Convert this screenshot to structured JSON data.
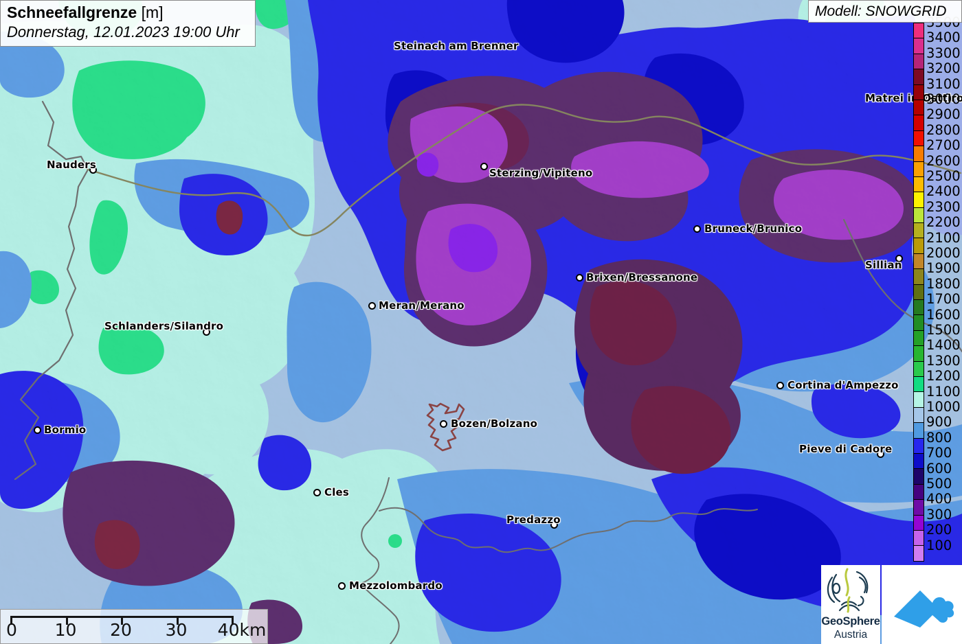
{
  "header": {
    "title_bold": "Schneefallgrenze",
    "title_unit": " [m]",
    "subtitle": "Donnerstag, 12.01.2023 19:00 Uhr"
  },
  "model_box": {
    "label": "Modell: SNOWGRID"
  },
  "legend": {
    "unit": "m",
    "labels": [
      "3500",
      "3400",
      "3300",
      "3200",
      "3100",
      "3000",
      "2900",
      "2800",
      "2700",
      "2600",
      "2500",
      "2400",
      "2300",
      "2200",
      "2100",
      "2000",
      "1900",
      "1800",
      "1700",
      "1600",
      "1500",
      "1400",
      "1300",
      "1200",
      "1100",
      "1000",
      "900",
      "800",
      "700",
      "600",
      "500",
      "400",
      "300",
      "200",
      "100"
    ],
    "cell_colors": [
      "#ee2e7c",
      "#da2f8e",
      "#b52478",
      "#7d0a24",
      "#970309",
      "#b60000",
      "#d40000",
      "#f21000",
      "#f87c00",
      "#f9a000",
      "#fbbc00",
      "#fdf200",
      "#bce53a",
      "#b5b01e",
      "#bb9b08",
      "#c28629",
      "#8c851e",
      "#606f13",
      "#257a20",
      "#218d24",
      "#24a128",
      "#27b531",
      "#2aca4c",
      "#12dc82",
      "#b5f5e5",
      "#a5c7e9",
      "#509be1",
      "#2727ee",
      "#0d0dc9",
      "#1d0469",
      "#45027f",
      "#6f0ba7",
      "#9405d3",
      "#c563eb",
      "#d07df1"
    ]
  },
  "scalebar": {
    "tick_labels": [
      "0",
      "10",
      "20",
      "30",
      "40km"
    ]
  },
  "cities": [
    {
      "name": "Steinach am Brenner",
      "dot": [
        726,
        67
      ],
      "label": [
        573,
        58
      ]
    },
    {
      "name": "Matrei in Osttirol",
      "dot": [
        1352,
        143
      ],
      "label": [
        1259,
        134
      ]
    },
    {
      "name": "Nauders",
      "dot": [
        135,
        247
      ],
      "label": [
        68,
        231
      ]
    },
    {
      "name": "Sterzing/Vipiteno",
      "dot": [
        704,
        242
      ],
      "label": [
        712,
        243
      ]
    },
    {
      "name": "Bruneck/Brunico",
      "dot": [
        1014,
        333
      ],
      "label": [
        1025,
        324
      ]
    },
    {
      "name": "Sillian",
      "dot": [
        1308,
        376
      ],
      "label": [
        1259,
        377
      ]
    },
    {
      "name": "Brixen/Bressanone",
      "dot": [
        843,
        404
      ],
      "label": [
        853,
        395
      ]
    },
    {
      "name": "Meran/Merano",
      "dot": [
        541,
        445
      ],
      "label": [
        551,
        436
      ]
    },
    {
      "name": "Schlanders/Silandro",
      "dot": [
        300,
        483
      ],
      "label": [
        152,
        466
      ]
    },
    {
      "name": "Cortina d'Ampezzo",
      "dot": [
        1135,
        561
      ],
      "label": [
        1146,
        552
      ]
    },
    {
      "name": "Bormio",
      "dot": [
        54,
        626
      ],
      "label": [
        64,
        617
      ]
    },
    {
      "name": "Bozen/Bolzano",
      "dot": [
        645,
        617
      ],
      "label": [
        656,
        608
      ]
    },
    {
      "name": "Pieve di Cadore",
      "dot": [
        1281,
        661
      ],
      "label": [
        1163,
        645
      ]
    },
    {
      "name": "Cles",
      "dot": [
        461,
        717
      ],
      "label": [
        472,
        708
      ]
    },
    {
      "name": "Predazzo",
      "dot": [
        806,
        764
      ],
      "label": [
        737,
        748
      ]
    },
    {
      "name": "Mezzolombardo",
      "dot": [
        497,
        853
      ],
      "label": [
        508,
        844
      ]
    }
  ],
  "logo": {
    "line1": "GeoSphere",
    "line2": "Austria"
  },
  "map_colors": {
    "base_900_1000": "#a7c4e4",
    "pale_cyan_1000": "#b6f1e7",
    "spring_green_1100": "#2be08c",
    "mid_blue_800": "#5f9fe5",
    "strong_blue_700": "#2929e9",
    "deep_navy_600": "#0d0dc9",
    "dark_navy_500": "#1c0e78",
    "muted_purple_400": "#5d2f6f",
    "bright_purple_300": "#a43fca",
    "violet_200": "#8a25ea",
    "maroon_patch": "#7c2744",
    "border_gray": "#6f6f6f",
    "bozen_outline": "#8a4444"
  }
}
